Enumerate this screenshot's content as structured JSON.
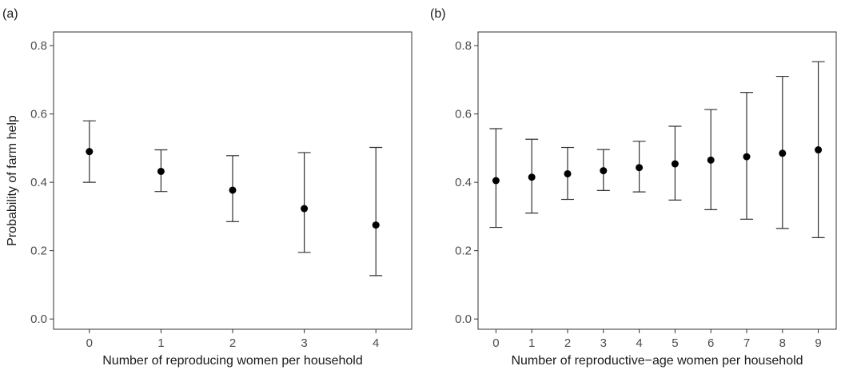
{
  "chart_data": [
    {
      "type": "scatter",
      "panel_label": "(a)",
      "xlabel": "Number of reproducing women per household",
      "ylabel": "Probability of farm help",
      "x": [
        0,
        1,
        2,
        3,
        4
      ],
      "x_tick_labels": [
        "0",
        "1",
        "2",
        "3",
        "4"
      ],
      "y": [
        0.49,
        0.432,
        0.377,
        0.323,
        0.275
      ],
      "y_lower": [
        0.4,
        0.373,
        0.285,
        0.195,
        0.127
      ],
      "y_upper": [
        0.58,
        0.495,
        0.478,
        0.487,
        0.502
      ],
      "xlim": [
        -0.5,
        4.5
      ],
      "ylim": [
        -0.03,
        0.84
      ],
      "y_ticks": [
        0.0,
        0.2,
        0.4,
        0.6,
        0.8
      ],
      "y_tick_labels": [
        "0.0",
        "0.2",
        "0.4",
        "0.6",
        "0.8"
      ],
      "grid": false,
      "error_bars": true
    },
    {
      "type": "scatter",
      "panel_label": "(b)",
      "xlabel": "Number of reproductive−age women per household",
      "ylabel": "",
      "x": [
        0,
        1,
        2,
        3,
        4,
        5,
        6,
        7,
        8,
        9
      ],
      "x_tick_labels": [
        "0",
        "1",
        "2",
        "3",
        "4",
        "5",
        "6",
        "7",
        "8",
        "9"
      ],
      "y": [
        0.405,
        0.415,
        0.425,
        0.434,
        0.443,
        0.454,
        0.465,
        0.475,
        0.485,
        0.495
      ],
      "y_lower": [
        0.268,
        0.31,
        0.35,
        0.376,
        0.372,
        0.348,
        0.32,
        0.292,
        0.265,
        0.238
      ],
      "y_upper": [
        0.557,
        0.526,
        0.502,
        0.496,
        0.52,
        0.564,
        0.613,
        0.663,
        0.71,
        0.753
      ],
      "xlim": [
        -0.5,
        9.5
      ],
      "ylim": [
        -0.03,
        0.84
      ],
      "y_ticks": [
        0.0,
        0.2,
        0.4,
        0.6,
        0.8
      ],
      "y_tick_labels": [
        "0.0",
        "0.2",
        "0.4",
        "0.6",
        "0.8"
      ],
      "grid": false,
      "error_bars": true
    }
  ],
  "colors": {
    "point": "#000000",
    "error_bar": "#333333",
    "panel_border": "#333333",
    "tick_label": "#4d4d4d"
  }
}
